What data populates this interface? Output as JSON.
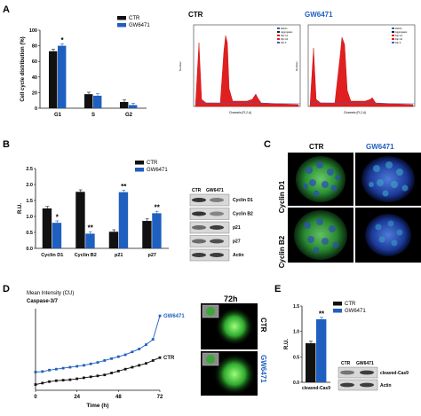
{
  "panels": {
    "A": {
      "letter": "A",
      "chart_data": {
        "type": "bar",
        "ylabel": "Cell cycle distribution (%)",
        "ylim": [
          0,
          100
        ],
        "yticks": [
          "0",
          "20",
          "40",
          "60",
          "80",
          "100"
        ],
        "categories": [
          "G1",
          "S",
          "G2"
        ],
        "series": [
          {
            "name": "CTR",
            "color": "#111111",
            "values": [
              73,
              18,
              8
            ]
          },
          {
            "name": "GW6471",
            "color": "#1f5fbf",
            "values": [
              80,
              16,
              4
            ]
          }
        ],
        "significance": [
          "*",
          "",
          ""
        ]
      },
      "flow": [
        {
          "title": "CTR",
          "color": "#111111",
          "xlabel": "Channels (FL2-A)",
          "ylabel": "Number",
          "legend": [
            "Debris",
            "Aggregates",
            "Dip G1",
            "Dip G2",
            "Dip S"
          ]
        },
        {
          "title": "GW6471",
          "color": "#1f5fbf",
          "xlabel": "Channels (FL2-A)",
          "ylabel": "Number",
          "legend": [
            "Debris",
            "Aggregates",
            "Dip G1",
            "Dip G2",
            "Dip S"
          ]
        }
      ]
    },
    "B": {
      "letter": "B",
      "chart_data": {
        "type": "bar",
        "ylabel": "R.U.",
        "ylim": [
          0,
          2.5
        ],
        "yticks": [
          "0.0",
          "0.5",
          "1.0",
          "1.5",
          "2.0",
          "2.5"
        ],
        "categories": [
          "Cyclin D1",
          "Cyclin B2",
          "p21",
          "p27"
        ],
        "series": [
          {
            "name": "CTR",
            "color": "#111111",
            "values": [
              1.25,
              1.77,
              0.52,
              0.86
            ]
          },
          {
            "name": "GW6471",
            "color": "#1f5fbf",
            "values": [
              0.8,
              0.46,
              1.76,
              1.1
            ]
          }
        ],
        "significance": [
          "*",
          "**",
          "**",
          "**"
        ]
      },
      "blot": {
        "cols": [
          "CTR",
          "GW6471"
        ],
        "rows": [
          "Cyclin D1",
          "Cyclin B2",
          "p21",
          "p27",
          "Actin"
        ]
      }
    },
    "C": {
      "letter": "C",
      "cols": [
        {
          "label": "CTR",
          "color": "#111111"
        },
        {
          "label": "GW6471",
          "color": "#1f5fbf"
        }
      ],
      "rows": [
        "Cyclin D1",
        "Cyclin B2"
      ]
    },
    "D": {
      "letter": "D",
      "chart_data": {
        "type": "line",
        "title": "Mean Intensity (CU)",
        "subtitle": "Caspase-3/7",
        "xlabel": "Time (h)",
        "xlim": [
          0,
          72
        ],
        "xticks": [
          "0",
          "24",
          "48",
          "72"
        ],
        "x": [
          0,
          4,
          8,
          12,
          16,
          20,
          24,
          28,
          32,
          36,
          40,
          44,
          48,
          52,
          56,
          60,
          64,
          68,
          72
        ],
        "series": [
          {
            "name": "GW6471",
            "color": "#1f5fbf",
            "values": [
              0.38,
              0.39,
              0.42,
              0.44,
              0.46,
              0.48,
              0.5,
              0.52,
              0.55,
              0.58,
              0.62,
              0.66,
              0.7,
              0.74,
              0.8,
              0.86,
              0.95,
              1.06,
              1.55
            ]
          },
          {
            "name": "CTR",
            "color": "#111111",
            "values": [
              0.12,
              0.15,
              0.18,
              0.2,
              0.21,
              0.22,
              0.24,
              0.26,
              0.28,
              0.3,
              0.32,
              0.36,
              0.4,
              0.44,
              0.48,
              0.52,
              0.56,
              0.62,
              0.68
            ]
          }
        ]
      },
      "time_label": "72h",
      "images": [
        {
          "label": "CTR",
          "color": "#111111"
        },
        {
          "label": "GW6471",
          "color": "#1f5fbf"
        }
      ]
    },
    "E": {
      "letter": "E",
      "chart_data": {
        "type": "bar",
        "ylabel": "R.U.",
        "ylim": [
          0,
          1.5
        ],
        "yticks": [
          "0.0",
          "0.5",
          "1.0",
          "1.5"
        ],
        "categories": [
          "cleaved-Cas9"
        ],
        "series": [
          {
            "name": "CTR",
            "color": "#111111",
            "values": [
              0.77
            ]
          },
          {
            "name": "GW6471",
            "color": "#1f5fbf",
            "values": [
              1.24
            ]
          }
        ],
        "significance": [
          "**"
        ]
      },
      "blot": {
        "cols": [
          "CTR",
          "GW6471"
        ],
        "rows": [
          "cleaved-Cas9",
          "Actin"
        ]
      }
    }
  }
}
